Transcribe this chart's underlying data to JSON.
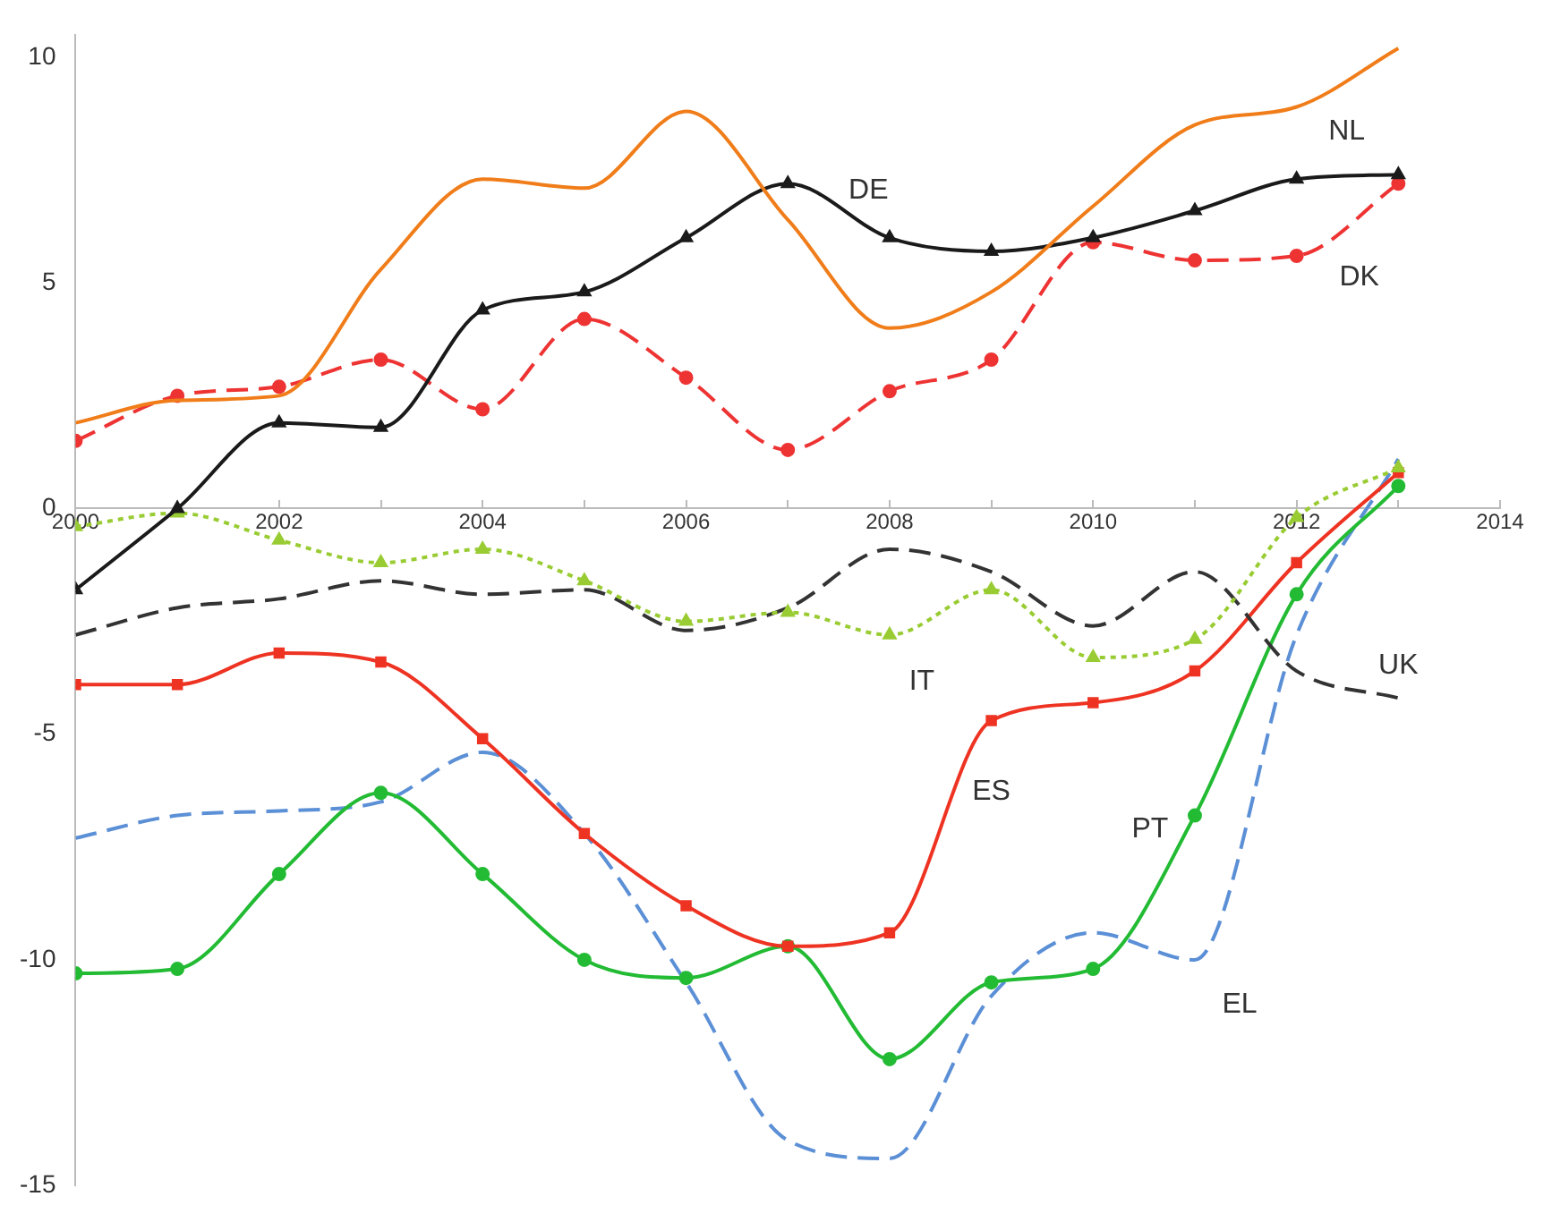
{
  "chart_data": {
    "type": "line",
    "x": [
      2000,
      2001,
      2002,
      2003,
      2004,
      2005,
      2006,
      2007,
      2008,
      2009,
      2010,
      2011,
      2012,
      2013
    ],
    "xlim": [
      2000,
      2014
    ],
    "xticks": [
      2000,
      {
        "value": 2001,
        "label": null
      },
      2002,
      {
        "value": 2003,
        "label": null
      },
      2004,
      {
        "value": 2005,
        "label": null
      },
      2006,
      {
        "value": 2007,
        "label": null
      },
      2008,
      {
        "value": 2009,
        "label": null
      },
      2010,
      {
        "value": 2011,
        "label": null
      },
      2012,
      {
        "value": 2013,
        "label": null
      },
      2014
    ],
    "ylim": [
      -15,
      10.5
    ],
    "yticks": [
      -15,
      -10,
      -5,
      0,
      5,
      10
    ],
    "grid": false,
    "legend": false,
    "series": [
      {
        "name": "NL",
        "color": "#f07d1a",
        "marker": "none",
        "line_style": "solid",
        "values": [
          1.9,
          2.4,
          2.5,
          5.3,
          7.3,
          7.1,
          8.8,
          6.4,
          4.0,
          4.8,
          6.7,
          8.5,
          8.9,
          10.2
        ]
      },
      {
        "name": "DE",
        "color": "#1a1a1a",
        "marker": "triangle",
        "line_style": "solid",
        "values": [
          -1.8,
          0.0,
          1.9,
          1.8,
          4.4,
          4.8,
          6.0,
          7.2,
          6.0,
          5.7,
          6.0,
          6.6,
          7.3,
          7.4
        ]
      },
      {
        "name": "DK",
        "color": "#ee3333",
        "marker": "circle",
        "line_style": "dashed",
        "values": [
          1.5,
          2.5,
          2.7,
          3.3,
          2.2,
          4.2,
          2.9,
          1.3,
          2.6,
          3.3,
          5.9,
          5.5,
          5.6,
          7.2
        ]
      },
      {
        "name": "IT",
        "color": "#99cc33",
        "marker": "triangle",
        "line_style": "dotted",
        "values": [
          -0.4,
          -0.1,
          -0.7,
          -1.2,
          -0.9,
          -1.6,
          -2.5,
          -2.3,
          -2.8,
          -1.8,
          -3.3,
          -2.9,
          -0.2,
          0.9
        ]
      },
      {
        "name": "UK",
        "color": "#333333",
        "marker": "none",
        "line_style": "dashed",
        "values": [
          -2.8,
          -2.2,
          -2.0,
          -1.6,
          -1.9,
          -1.8,
          -2.7,
          -2.2,
          -0.9,
          -1.4,
          -2.6,
          -1.4,
          -3.6,
          -4.2
        ]
      },
      {
        "name": "ES",
        "color": "#ee3322",
        "marker": "square",
        "line_style": "solid",
        "values": [
          -3.9,
          -3.9,
          -3.2,
          -3.4,
          -5.1,
          -7.2,
          -8.8,
          -9.7,
          -9.4,
          -4.7,
          -4.3,
          -3.6,
          -1.2,
          0.8
        ]
      },
      {
        "name": "PT",
        "color": "#22bb33",
        "marker": "circle",
        "line_style": "solid",
        "values": [
          -10.3,
          -10.2,
          -8.1,
          -6.3,
          -8.1,
          -10.0,
          -10.4,
          -9.7,
          -12.2,
          -10.5,
          -10.2,
          -6.8,
          -1.9,
          0.5
        ]
      },
      {
        "name": "EL",
        "color": "#5b8fd6",
        "marker": "none",
        "line_style": "dashed",
        "values": [
          -7.3,
          -6.8,
          -6.7,
          -6.5,
          -5.4,
          -7.2,
          -10.5,
          -14.0,
          -14.4,
          -10.8,
          -9.4,
          -10.0,
          -2.8,
          1.1
        ]
      }
    ]
  }
}
